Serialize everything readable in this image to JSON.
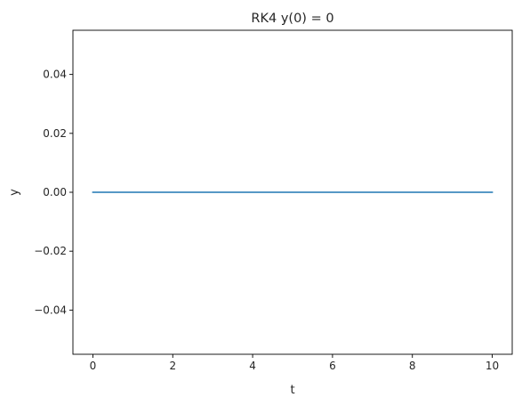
{
  "chart_data": {
    "type": "line",
    "title": "RK4 y(0) = 0",
    "xlabel": "t",
    "ylabel": "y",
    "xlim": [
      -0.5,
      10.5
    ],
    "ylim": [
      -0.055,
      0.055
    ],
    "xticks": [
      0,
      2,
      4,
      6,
      8,
      10
    ],
    "xtick_labels": [
      "0",
      "2",
      "4",
      "6",
      "8",
      "10"
    ],
    "yticks": [
      -0.04,
      -0.02,
      0.0,
      0.02,
      0.04
    ],
    "ytick_labels": [
      "−0.04",
      "−0.02",
      "0.00",
      "0.02",
      "0.04"
    ],
    "grid": false,
    "series": [
      {
        "color": "#1f77b4",
        "x": [
          0,
          1,
          2,
          3,
          4,
          5,
          6,
          7,
          8,
          9,
          10
        ],
        "y": [
          0,
          0,
          0,
          0,
          0,
          0,
          0,
          0,
          0,
          0,
          0
        ]
      }
    ]
  }
}
